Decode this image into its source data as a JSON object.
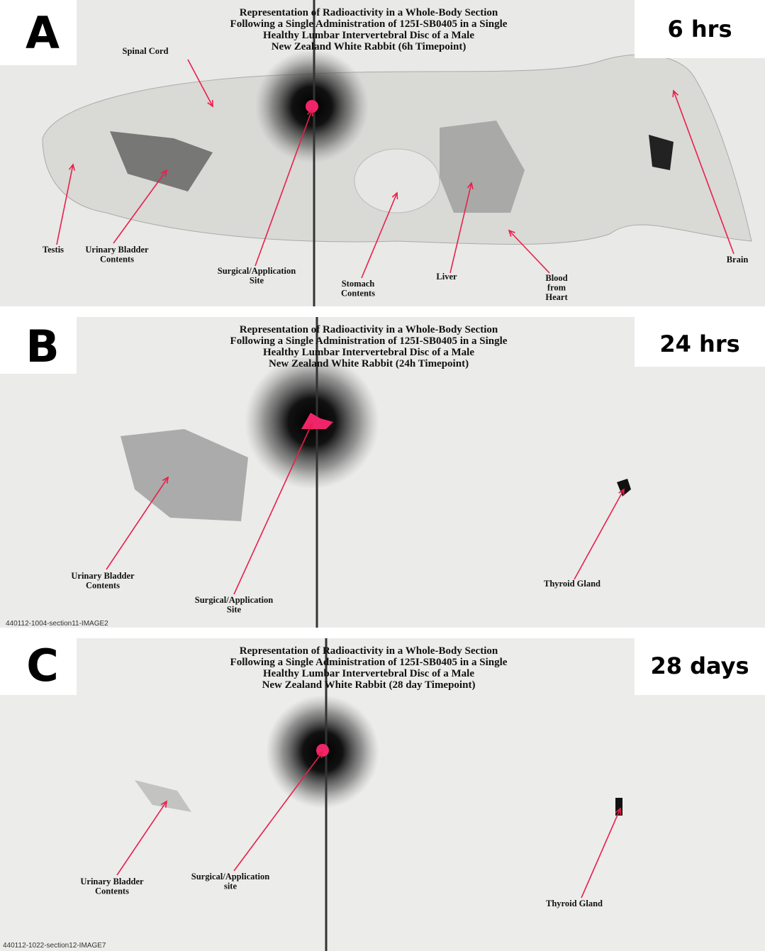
{
  "panels": [
    {
      "letter": "A",
      "time": "6 hrs",
      "title": [
        "Representation of Radioactivity in a Whole-Body Section",
        "Following a Single Administration of 125I-SB0405 in a Single",
        "Healthy Lumbar Intervertebral Disc of a Male",
        "New Zealand White Rabbit (6h Timepoint)"
      ],
      "labels": [
        [
          "Spinal Cord"
        ],
        [
          "Testis"
        ],
        [
          "Urinary Bladder",
          "Contents"
        ],
        [
          "Surgical/Application",
          "Site"
        ],
        [
          "Stomach",
          "Contents"
        ],
        [
          "Liver"
        ],
        [
          "Blood",
          "from",
          "Heart"
        ],
        [
          "Brain"
        ]
      ]
    },
    {
      "letter": "B",
      "time": "24 hrs",
      "title": [
        "Representation of Radioactivity in a Whole-Body Section",
        "Following a Single Administration of 125I-SB0405 in a Single",
        "Healthy Lumbar Intervertebral Disc of a Male",
        "New Zealand White Rabbit (24h Timepoint)"
      ],
      "labels": [
        [
          "Urinary Bladder",
          "Contents"
        ],
        [
          "Surgical/Application",
          "Site"
        ],
        [
          "Thyroid Gland"
        ]
      ],
      "image_id": "440112-1004-section11-IMAGE2"
    },
    {
      "letter": "C",
      "time": "28 days",
      "title": [
        "Representation of Radioactivity in a Whole-Body Section",
        "Following a Single Administration of 125I-SB0405 in a Single",
        "Healthy Lumbar Intervertebral Disc of a Male",
        "New Zealand White Rabbit (28 day Timepoint)"
      ],
      "labels": [
        [
          "Urinary Bladder",
          "Contents"
        ],
        [
          "Surgical/Application",
          "site"
        ],
        [
          "Thyroid Gland"
        ]
      ],
      "image_id": "440112-1022-section12-IMAGE7"
    }
  ]
}
